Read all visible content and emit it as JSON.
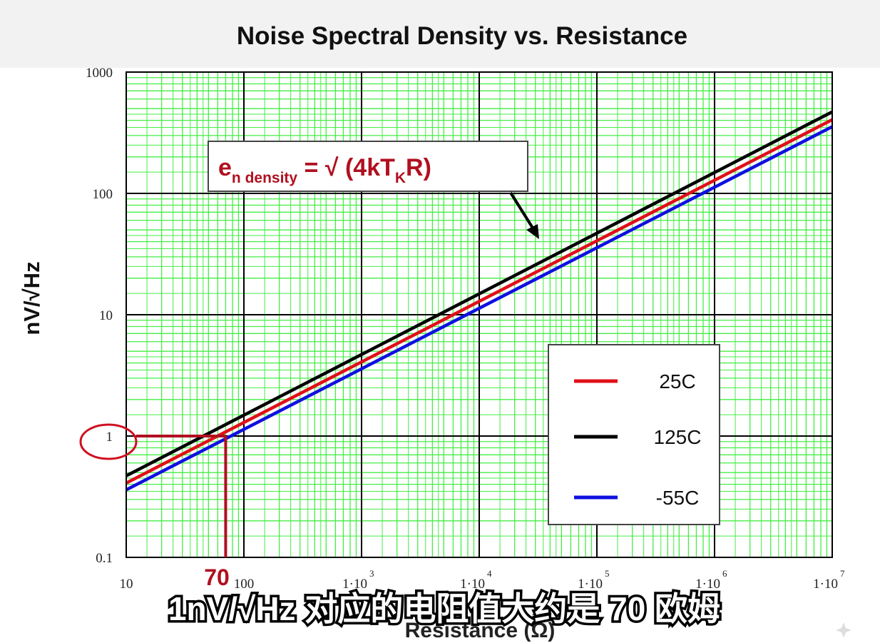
{
  "chart_data": {
    "type": "line",
    "title": "Noise Spectral Density vs. Resistance",
    "xlabel": "Resistance (Ω)",
    "ylabel": "nV/√Hz",
    "x_scale": "log",
    "y_scale": "log",
    "xlim": [
      10,
      10000000
    ],
    "ylim": [
      0.1,
      1000
    ],
    "grid": true,
    "legend_position": "bottom-right",
    "x_tick_labels": [
      {
        "value": 10,
        "main": "10",
        "exp": ""
      },
      {
        "value": 100,
        "main": "100",
        "exp": ""
      },
      {
        "value": 1000,
        "main": "1·10",
        "exp": "3"
      },
      {
        "value": 10000,
        "main": "1·10",
        "exp": "4"
      },
      {
        "value": 100000,
        "main": "1·10",
        "exp": "5"
      },
      {
        "value": 1000000,
        "main": "1·10",
        "exp": "6"
      },
      {
        "value": 10000000,
        "main": "1·10",
        "exp": "7"
      }
    ],
    "y_tick_labels": [
      {
        "value": 0.1,
        "label": "0.1"
      },
      {
        "value": 1,
        "label": "1"
      },
      {
        "value": 10,
        "label": "10"
      },
      {
        "value": 100,
        "label": "100"
      },
      {
        "value": 1000,
        "label": "1000"
      }
    ],
    "series": [
      {
        "name": "25C",
        "color": "#e0101a",
        "x": [
          10,
          10000000
        ],
        "y": [
          0.41,
          405
        ]
      },
      {
        "name": "125C",
        "color": "#000000",
        "x": [
          10,
          10000000
        ],
        "y": [
          0.47,
          470
        ]
      },
      {
        "name": "-55C",
        "color": "#1010e0",
        "x": [
          10,
          10000000
        ],
        "y": [
          0.36,
          355
        ]
      }
    ],
    "annotations": {
      "formula": {
        "prefix": "e",
        "sub1": "n density",
        "mid": " = √ (4kT",
        "sub2": "K",
        "suffix": "R)"
      },
      "marker": {
        "x": 70,
        "y": 1,
        "label": "70",
        "color": "#b01020"
      }
    }
  },
  "subtitle": "1nV/√Hz 对应的电阻值大约是 70 欧姆",
  "colors": {
    "grid_minor": "#44ee44",
    "grid_major": "#000000",
    "plot_bg": "#ffffff",
    "accent": "#b01020"
  }
}
